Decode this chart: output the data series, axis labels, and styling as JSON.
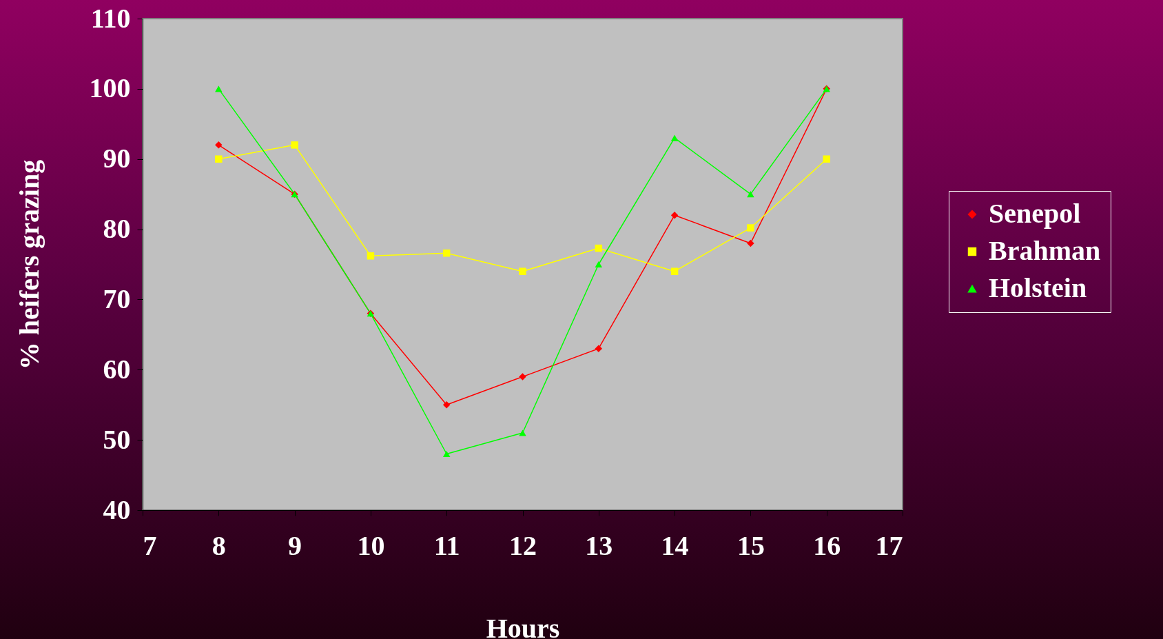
{
  "chart_data": {
    "type": "line",
    "xlabel": "Hours",
    "ylabel": "% heifers grazing",
    "x": [
      8,
      9,
      10,
      11,
      12,
      13,
      14,
      15,
      16
    ],
    "series": [
      {
        "name": "Senepol",
        "color": "#ff0000",
        "marker": "diamond",
        "values": [
          92,
          85,
          68,
          55,
          59,
          63,
          82,
          78,
          100
        ]
      },
      {
        "name": "Brahman",
        "color": "#ffff00",
        "marker": "square",
        "values": [
          90,
          92,
          76.2,
          76.6,
          74,
          77.3,
          74,
          80.2,
          90
        ]
      },
      {
        "name": "Holstein",
        "color": "#00ff00",
        "marker": "triangle",
        "values": [
          100,
          85,
          68,
          48,
          51,
          75,
          93,
          85,
          100
        ]
      }
    ],
    "xlim": [
      7,
      17
    ],
    "xticks": [
      7,
      8,
      9,
      10,
      11,
      12,
      13,
      14,
      15,
      16,
      17
    ],
    "ylim": [
      40,
      110
    ],
    "yticks": [
      40,
      50,
      60,
      70,
      80,
      90,
      100,
      110
    ],
    "grid": false,
    "legend": "right",
    "line_style": "solid"
  }
}
